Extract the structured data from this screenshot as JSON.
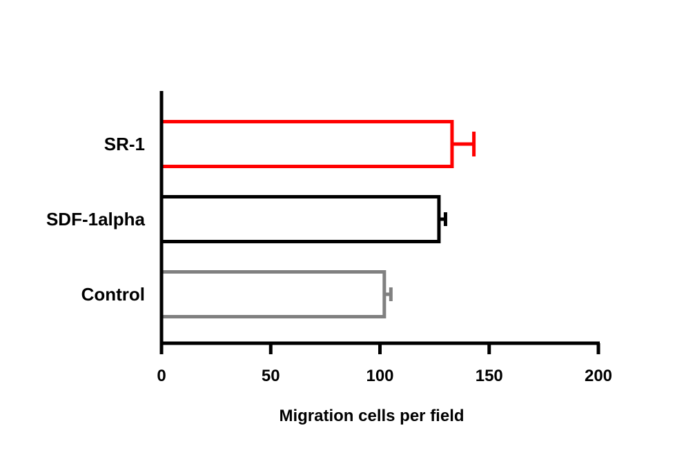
{
  "chart_data": {
    "type": "bar",
    "orientation": "horizontal",
    "title": "",
    "xlabel": "Migration cells per field",
    "ylabel": "",
    "xlim": [
      0,
      200
    ],
    "xticks": [
      0,
      50,
      100,
      150,
      200
    ],
    "xtick_labels": [
      "0",
      "50",
      "100",
      "150",
      "200"
    ],
    "grid": false,
    "legend": "none",
    "categories": [
      "SR-1",
      "SDF-1alpha",
      "Control"
    ],
    "values": [
      133,
      127,
      102
    ],
    "errors": [
      10,
      3,
      3
    ],
    "colors": [
      "#ff0000",
      "#000000",
      "#808080"
    ],
    "bar_style": "outline"
  }
}
